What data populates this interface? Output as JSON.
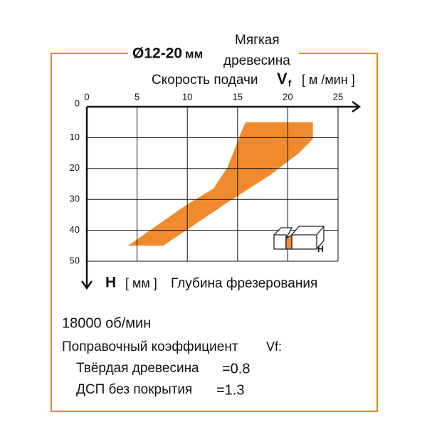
{
  "chart_data": {
    "type": "area",
    "title": "Ø12-20",
    "title_unit": "мм",
    "material": [
      "Мягкая",
      "древесина"
    ],
    "x_label": {
      "text": "Скорость подачи",
      "symbol": "V",
      "subscript": "f",
      "unit": "[ м /мин ]"
    },
    "y_label": {
      "symbol": "H",
      "unit": "[ мм ]",
      "text": "Глубина фрезерования"
    },
    "icon_label": "H",
    "color": "#f08a2c",
    "grid": true,
    "xlim": [
      0,
      25
    ],
    "ylim": [
      0,
      50
    ],
    "xticks": [
      0,
      5,
      10,
      15,
      20,
      25
    ],
    "yticks": [
      0,
      10,
      20,
      30,
      40,
      50
    ],
    "x": [
      4.1,
      7.6,
      14.0,
      18.3,
      21.1,
      22.5,
      22.5,
      15.8,
      15.4,
      14.0,
      12.6,
      9.8
    ],
    "values": [
      45,
      45,
      31,
      22,
      15,
      10.4,
      5,
      5,
      8,
      19.6,
      26.5,
      32
    ]
  },
  "footer": {
    "speed": "18000 об/мин",
    "coefficient": "Поправочный коэффициент",
    "coefficient_symbol": "Vf:",
    "rows": [
      {
        "material": "Твёрдая древесина",
        "factor": "=0.8"
      },
      {
        "material": "ДСП без покрытия",
        "factor": "=1.3"
      }
    ]
  }
}
